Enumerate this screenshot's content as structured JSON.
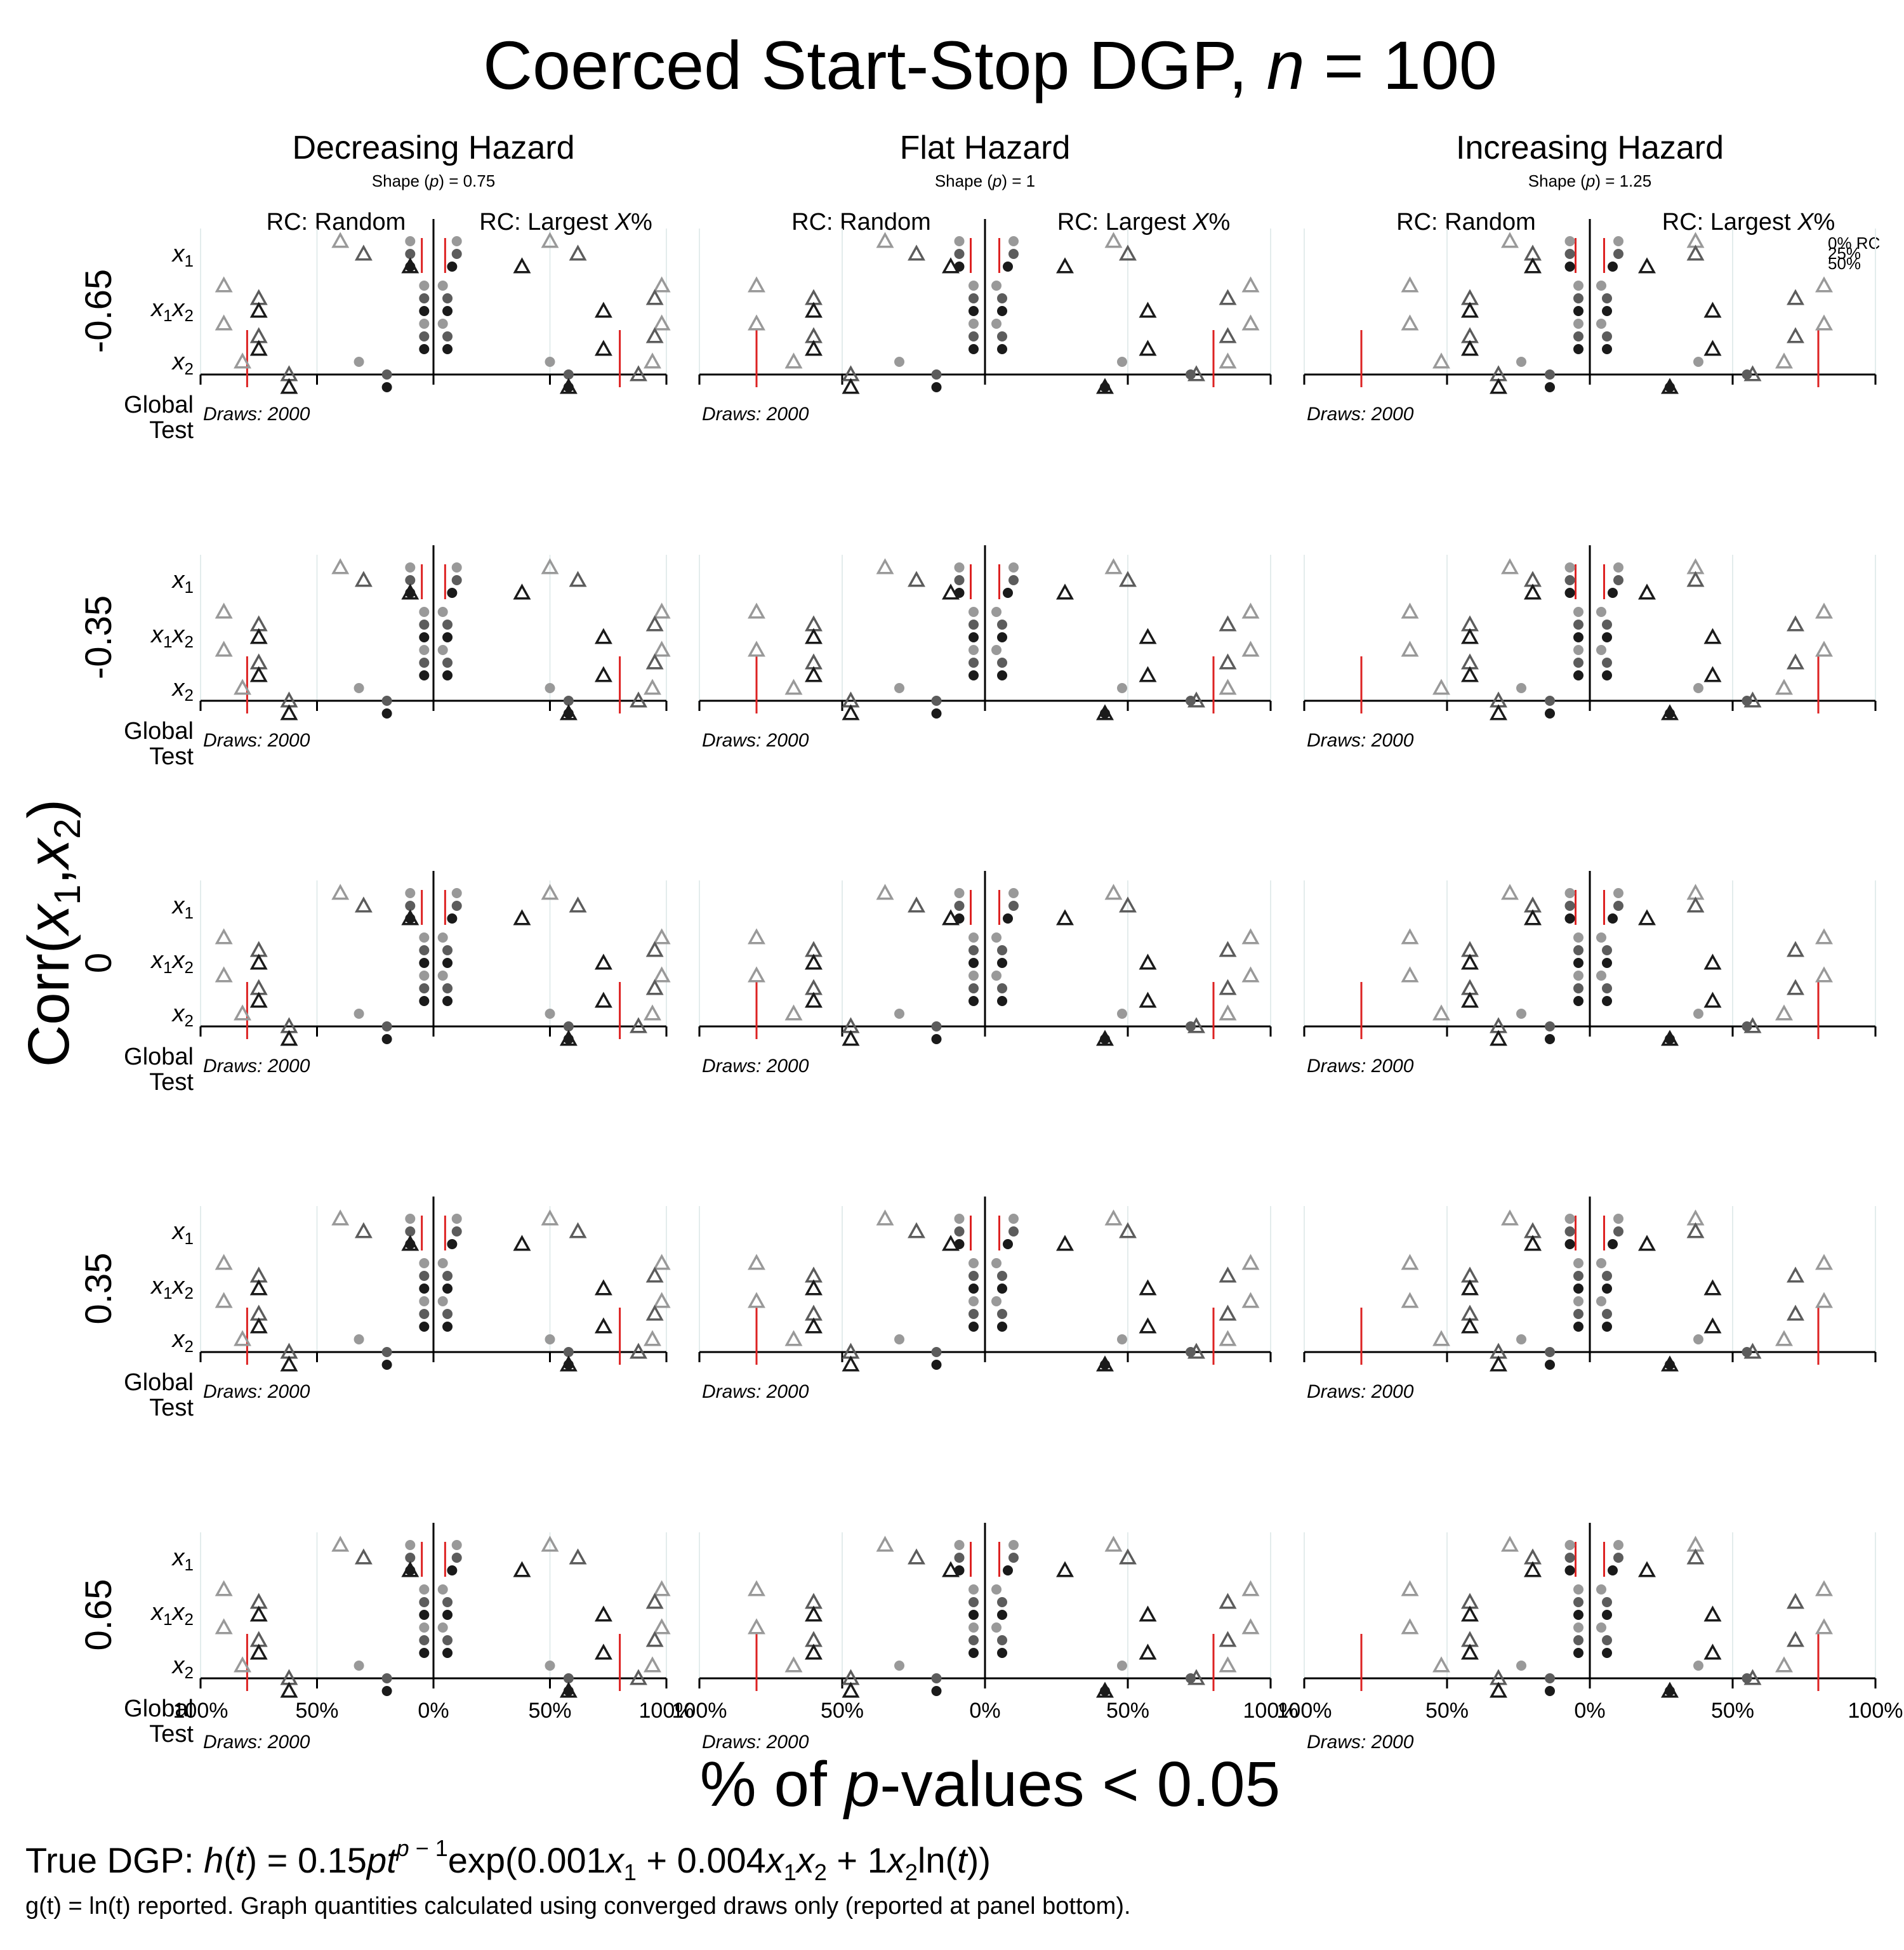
{
  "title": {
    "main": "Coerced Start-Stop DGP, ",
    "n_symbol": "n",
    "n_eq": " = 100"
  },
  "columns": [
    {
      "title": "Decreasing Hazard",
      "shape_pre": "Shape (",
      "shape_p": "p",
      "shape_post": ") = 0.75"
    },
    {
      "title": "Flat Hazard",
      "shape_pre": "Shape (",
      "shape_p": "p",
      "shape_post": ") = 1"
    },
    {
      "title": "Increasing Hazard",
      "shape_pre": "Shape (",
      "shape_p": "p",
      "shape_post": ") = 1.25"
    }
  ],
  "side_labels": {
    "random": "RC: Random",
    "largest_pre": "RC: Largest ",
    "largest_x": "X",
    "largest_post": "%"
  },
  "legend": [
    "0% RC",
    "25%",
    "50%"
  ],
  "row_corr_labels": [
    "-0.65",
    "-0.35",
    "0",
    "0.35",
    "0.65"
  ],
  "y_axis_title": {
    "pre": "Corr(",
    "x1": "x",
    "sub1": "1",
    "comma": ",",
    "x2": "x",
    "sub2": "2",
    "post": ")"
  },
  "covariate_labels": {
    "x1": "x1",
    "x1x2": "x1x2",
    "x2": "x2",
    "global": "Global",
    "test": "Test"
  },
  "draws_label": "Draws: 2000",
  "x_ticks": [
    "100%",
    "50%",
    "0%",
    "50%",
    "100%"
  ],
  "x_axis_title": {
    "pre": "% of ",
    "p": "p",
    "post": "-values < 0.05"
  },
  "footer": {
    "dgp_prefix": "True DGP: ",
    "dgp_formula": "h(t) = 0.15pt^(p−1) exp(0.001x1 + 0.004x1x2 + 1x2ln(t))",
    "note": "g(t) = ln(t) reported.  Graph quantities calculated using converged draws only (reported at panel bottom)."
  },
  "chart_data": {
    "type": "scatter",
    "description_units": "percent of p-values < 0.05; left half = RC Random, right half = RC Largest X%",
    "xlim": [
      -100,
      100
    ],
    "rc_levels": [
      "0% RC",
      "25%",
      "50%"
    ],
    "level_colors": [
      "#999999",
      "#5c5c5c",
      "#1a1a1a"
    ],
    "reference_line_color": "#dd2222",
    "panels": [
      {
        "corr": -0.65,
        "hazard": "Decreasing",
        "refs": {
          "x1": [
            -5,
            5
          ],
          "x2": [
            -80,
            80
          ],
          "global": [
            -80,
            80
          ]
        },
        "rows": {
          "x1": {
            "tri": {
              "L": [
                -40,
                -30,
                -10
              ],
              "R": [
                50,
                62,
                38
              ]
            },
            "dot": {
              "L": [
                -10,
                -10,
                -10
              ],
              "R": [
                10,
                10,
                8
              ]
            }
          },
          "x1x2": {
            "tri": {
              "L": [
                -90,
                -75,
                -75
              ],
              "R": [
                98,
                95,
                73
              ]
            },
            "dot": {
              "L": [
                -4,
                -4,
                -4
              ],
              "R": [
                4,
                6,
                6
              ]
            }
          },
          "x2": {
            "tri": {
              "L": [
                -90,
                -75,
                -75
              ],
              "R": [
                98,
                95,
                73
              ]
            },
            "dot": {
              "L": [
                -4,
                -4,
                -4
              ],
              "R": [
                4,
                6,
                6
              ]
            }
          },
          "global": {
            "tri": {
              "L": [
                -82,
                -62,
                -62
              ],
              "R": [
                94,
                88,
                58
              ]
            },
            "dot": {
              "L": [
                -32,
                -20,
                -20
              ],
              "R": [
                50,
                58,
                58
              ]
            }
          }
        }
      },
      {
        "corr": -0.65,
        "hazard": "Flat",
        "refs": {
          "x1": [
            -5,
            5
          ],
          "x2": [
            -80,
            80
          ],
          "global": [
            -80,
            80
          ]
        },
        "rows": {
          "x1": {
            "tri": {
              "L": [
                -35,
                -24,
                -12
              ],
              "R": [
                45,
                50,
                28
              ]
            },
            "dot": {
              "L": [
                -9,
                -9,
                -9
              ],
              "R": [
                10,
                10,
                8
              ]
            }
          },
          "x1x2": {
            "tri": {
              "L": [
                -80,
                -60,
                -60
              ],
              "R": [
                93,
                85,
                57
              ]
            },
            "dot": {
              "L": [
                -4,
                -4,
                -4
              ],
              "R": [
                4,
                6,
                6
              ]
            }
          },
          "x2": {
            "tri": {
              "L": [
                -80,
                -60,
                -60
              ],
              "R": [
                93,
                85,
                57
              ]
            },
            "dot": {
              "L": [
                -4,
                -4,
                -4
              ],
              "R": [
                4,
                6,
                6
              ]
            }
          },
          "global": {
            "tri": {
              "L": [
                -67,
                -47,
                -47
              ],
              "R": [
                85,
                74,
                42
              ]
            },
            "dot": {
              "L": [
                -30,
                -17,
                -17
              ],
              "R": [
                48,
                72,
                42
              ]
            }
          }
        }
      },
      {
        "corr": -0.65,
        "hazard": "Increasing",
        "refs": {
          "x1": [
            -5,
            5
          ],
          "x2": [
            -80,
            80
          ],
          "global": [
            -80,
            80
          ]
        },
        "rows": {
          "x1": {
            "tri": {
              "L": [
                -28,
                -20,
                -20
              ],
              "R": [
                37,
                37,
                20
              ]
            },
            "dot": {
              "L": [
                -7,
                -7,
                -7
              ],
              "R": [
                10,
                10,
                8
              ]
            }
          },
          "x1x2": {
            "tri": {
              "L": [
                -63,
                -42,
                -42
              ],
              "R": [
                82,
                72,
                43
              ]
            },
            "dot": {
              "L": [
                -4,
                -4,
                -4
              ],
              "R": [
                4,
                6,
                6
              ]
            }
          },
          "x2": {
            "tri": {
              "L": [
                -63,
                -42,
                -42
              ],
              "R": [
                82,
                72,
                43
              ]
            },
            "dot": {
              "L": [
                -4,
                -4,
                -4
              ],
              "R": [
                4,
                6,
                6
              ]
            }
          },
          "global": {
            "tri": {
              "L": [
                -52,
                -32,
                -32
              ],
              "R": [
                68,
                57,
                28
              ]
            },
            "dot": {
              "L": [
                -24,
                -14,
                -14
              ],
              "R": [
                38,
                55,
                28
              ]
            }
          }
        }
      }
    ]
  }
}
